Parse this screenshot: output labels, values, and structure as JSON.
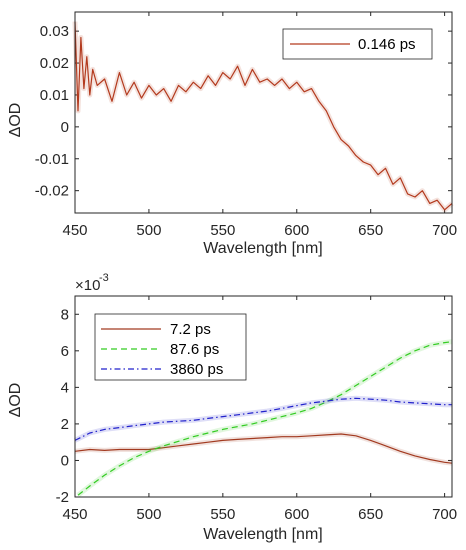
{
  "chart_data": [
    {
      "type": "line",
      "title": "",
      "xlabel": "Wavelength [nm]",
      "ylabel": "ΔOD",
      "xlim": [
        450,
        705
      ],
      "ylim": [
        -0.027,
        0.036
      ],
      "xticks": [
        "450",
        "500",
        "550",
        "600",
        "650",
        "700"
      ],
      "yticks": [
        "-0.02",
        "-0.01",
        "0",
        "0.01",
        "0.02",
        "0.03"
      ],
      "yticks_values": [
        -0.02,
        -0.01,
        0,
        0.01,
        0.02,
        0.03
      ],
      "xticks_values": [
        450,
        500,
        550,
        600,
        650,
        700
      ],
      "grid": false,
      "legend_position": "top-right",
      "series": [
        {
          "name": "0.146 ps",
          "color": "#b33a1e",
          "style": "solid",
          "x": [
            450,
            452,
            454,
            456,
            458,
            460,
            462,
            465,
            470,
            475,
            480,
            485,
            490,
            495,
            500,
            505,
            510,
            515,
            520,
            525,
            530,
            535,
            540,
            545,
            550,
            555,
            560,
            565,
            570,
            575,
            580,
            585,
            590,
            595,
            600,
            605,
            610,
            615,
            620,
            625,
            630,
            635,
            640,
            645,
            650,
            655,
            660,
            665,
            670,
            675,
            680,
            685,
            690,
            695,
            700,
            705
          ],
          "y": [
            0.033,
            0.005,
            0.028,
            0.012,
            0.022,
            0.01,
            0.018,
            0.013,
            0.015,
            0.008,
            0.017,
            0.01,
            0.014,
            0.009,
            0.013,
            0.01,
            0.012,
            0.008,
            0.013,
            0.011,
            0.014,
            0.012,
            0.016,
            0.013,
            0.017,
            0.015,
            0.019,
            0.013,
            0.018,
            0.014,
            0.015,
            0.013,
            0.015,
            0.012,
            0.014,
            0.011,
            0.012,
            0.008,
            0.005,
            0.0,
            -0.004,
            -0.006,
            -0.009,
            -0.011,
            -0.012,
            -0.015,
            -0.013,
            -0.018,
            -0.016,
            -0.021,
            -0.022,
            -0.02,
            -0.024,
            -0.023,
            -0.026,
            -0.024
          ]
        }
      ]
    },
    {
      "type": "line",
      "title": "",
      "xlabel": "Wavelength [nm]",
      "ylabel": "ΔOD",
      "exponent_label": "×10",
      "exponent_power": "-3",
      "xlim": [
        450,
        705
      ],
      "ylim": [
        -2,
        9
      ],
      "xticks": [
        "450",
        "500",
        "550",
        "600",
        "650",
        "700"
      ],
      "yticks": [
        "-2",
        "0",
        "2",
        "4",
        "6",
        "8"
      ],
      "yticks_values": [
        -2,
        0,
        2,
        4,
        6,
        8
      ],
      "xticks_values": [
        450,
        500,
        550,
        600,
        650,
        700
      ],
      "grid": false,
      "legend_position": "top-left",
      "series": [
        {
          "name": "7.2 ps",
          "color": "#a23a20",
          "style": "solid",
          "x": [
            450,
            460,
            470,
            480,
            490,
            500,
            510,
            520,
            530,
            540,
            550,
            560,
            570,
            580,
            590,
            600,
            610,
            620,
            630,
            640,
            650,
            660,
            670,
            680,
            690,
            700,
            705
          ],
          "y": [
            0.5,
            0.6,
            0.55,
            0.6,
            0.6,
            0.6,
            0.7,
            0.8,
            0.9,
            1.0,
            1.1,
            1.15,
            1.2,
            1.25,
            1.3,
            1.3,
            1.35,
            1.4,
            1.45,
            1.35,
            1.1,
            0.8,
            0.5,
            0.25,
            0.05,
            -0.1,
            -0.15
          ]
        },
        {
          "name": "87.6 ps",
          "color": "#33cc22",
          "style": "dashed",
          "x": [
            452,
            460,
            470,
            480,
            490,
            500,
            510,
            520,
            530,
            540,
            550,
            560,
            570,
            580,
            590,
            600,
            610,
            620,
            630,
            640,
            650,
            660,
            670,
            680,
            690,
            700,
            705
          ],
          "y": [
            -1.9,
            -1.4,
            -0.8,
            -0.3,
            0.15,
            0.5,
            0.8,
            1.05,
            1.3,
            1.5,
            1.7,
            1.85,
            2.0,
            2.2,
            2.4,
            2.6,
            2.85,
            3.2,
            3.6,
            4.1,
            4.6,
            5.1,
            5.6,
            6.0,
            6.3,
            6.45,
            6.5
          ]
        },
        {
          "name": "3860 ps",
          "color": "#2222cc",
          "style": "dashdot",
          "x": [
            450,
            460,
            470,
            480,
            490,
            500,
            510,
            520,
            530,
            540,
            550,
            560,
            570,
            580,
            590,
            600,
            610,
            620,
            630,
            640,
            650,
            660,
            670,
            680,
            690,
            700,
            705
          ],
          "y": [
            1.1,
            1.5,
            1.7,
            1.8,
            1.9,
            2.0,
            2.1,
            2.15,
            2.2,
            2.3,
            2.4,
            2.5,
            2.6,
            2.7,
            2.85,
            3.0,
            3.15,
            3.25,
            3.35,
            3.4,
            3.35,
            3.3,
            3.2,
            3.15,
            3.1,
            3.05,
            3.05
          ]
        }
      ]
    }
  ]
}
